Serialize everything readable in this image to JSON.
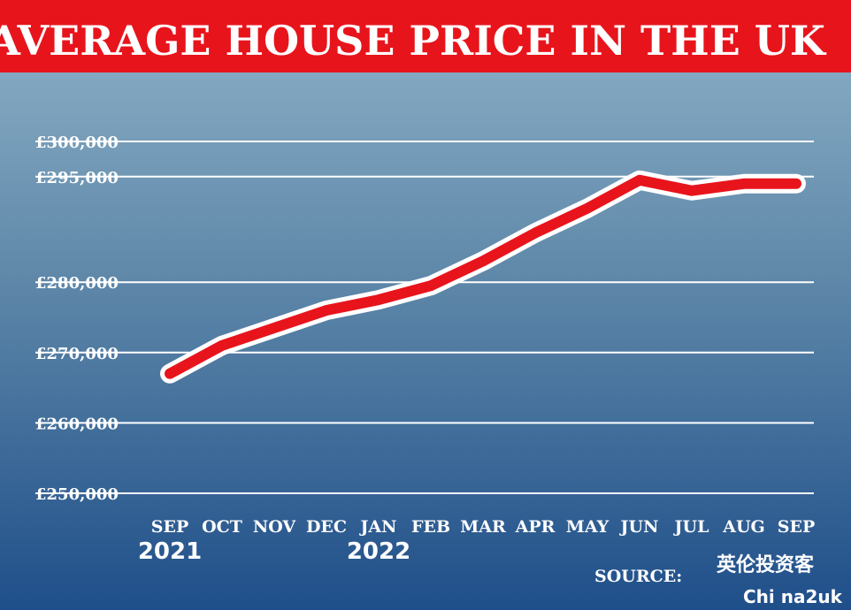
{
  "chart_data": {
    "type": "line",
    "title": "AVERAGE HOUSE PRICE IN THE UK",
    "categories": [
      "SEP",
      "OCT",
      "NOV",
      "DEC",
      "JAN",
      "FEB",
      "MAR",
      "APR",
      "MAY",
      "JUN",
      "JUL",
      "AUG",
      "SEP"
    ],
    "years": [
      "2021",
      null,
      null,
      null,
      "2022",
      null,
      null,
      null,
      null,
      null,
      null,
      null,
      null
    ],
    "series": [
      {
        "name": "Average house price",
        "color": "#e8141c",
        "values": [
          267000,
          271000,
          273500,
          276000,
          277500,
          279500,
          283000,
          287000,
          290500,
          294500,
          293000,
          294000,
          294000
        ]
      }
    ],
    "ylim": [
      250000,
      300000
    ],
    "yticks": [
      {
        "value": 250000,
        "label": "£250,000"
      },
      {
        "value": 260000,
        "label": "£260,000"
      },
      {
        "value": 270000,
        "label": "£270,000"
      },
      {
        "value": 280000,
        "label": "£280,000"
      },
      {
        "value": 295000,
        "label": "£295,000"
      },
      {
        "value": 300000,
        "label": "£300,000"
      }
    ],
    "grid": true,
    "source": "SOURCE:",
    "watermark": [
      "英伦投资客",
      "Chi na2uk"
    ]
  }
}
